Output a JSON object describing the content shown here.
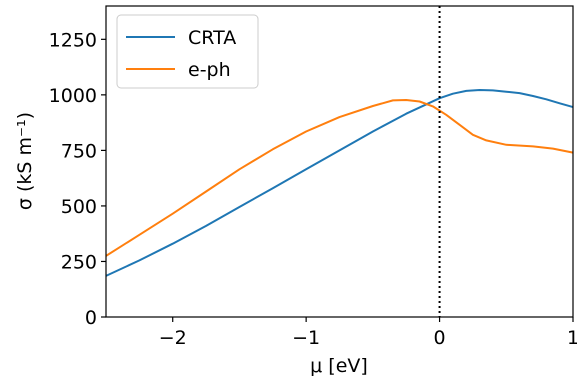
{
  "chart_data": {
    "type": "line",
    "xlabel": "μ [eV]",
    "ylabel": "σ (kS m⁻¹)",
    "xlim": [
      -2.5,
      1.0
    ],
    "ylim": [
      0,
      1400
    ],
    "x_ticks": [
      -2,
      -1,
      0,
      1
    ],
    "x_tick_labels": [
      "−2",
      "−1",
      "0",
      "1"
    ],
    "y_ticks": [
      0,
      250,
      500,
      750,
      1000,
      1250
    ],
    "y_tick_labels": [
      "0",
      "250",
      "500",
      "750",
      "1000",
      "1250"
    ],
    "grid": false,
    "legend_position": "upper-left",
    "vertical_reference": {
      "x": 0,
      "style": "dotted",
      "color": "#000000"
    },
    "series": [
      {
        "name": "CRTA",
        "color": "#1f77b4",
        "points": [
          [
            -2.5,
            185
          ],
          [
            -2.25,
            255
          ],
          [
            -2.0,
            330
          ],
          [
            -1.75,
            410
          ],
          [
            -1.5,
            495
          ],
          [
            -1.25,
            580
          ],
          [
            -1.0,
            665
          ],
          [
            -0.75,
            750
          ],
          [
            -0.5,
            835
          ],
          [
            -0.25,
            915
          ],
          [
            0.0,
            985
          ],
          [
            0.1,
            1005
          ],
          [
            0.2,
            1018
          ],
          [
            0.3,
            1022
          ],
          [
            0.4,
            1020
          ],
          [
            0.5,
            1014
          ],
          [
            0.6,
            1008
          ],
          [
            0.7,
            995
          ],
          [
            0.8,
            980
          ],
          [
            0.9,
            962
          ],
          [
            1.0,
            945
          ]
        ]
      },
      {
        "name": "e-ph",
        "color": "#ff7f0e",
        "points": [
          [
            -2.5,
            275
          ],
          [
            -2.25,
            370
          ],
          [
            -2.0,
            465
          ],
          [
            -1.75,
            565
          ],
          [
            -1.5,
            665
          ],
          [
            -1.25,
            755
          ],
          [
            -1.0,
            835
          ],
          [
            -0.75,
            900
          ],
          [
            -0.5,
            950
          ],
          [
            -0.35,
            975
          ],
          [
            -0.25,
            977
          ],
          [
            -0.15,
            970
          ],
          [
            -0.05,
            948
          ],
          [
            0.05,
            910
          ],
          [
            0.15,
            865
          ],
          [
            0.25,
            820
          ],
          [
            0.35,
            795
          ],
          [
            0.5,
            775
          ],
          [
            0.7,
            768
          ],
          [
            0.85,
            758
          ],
          [
            1.0,
            740
          ]
        ]
      }
    ]
  }
}
